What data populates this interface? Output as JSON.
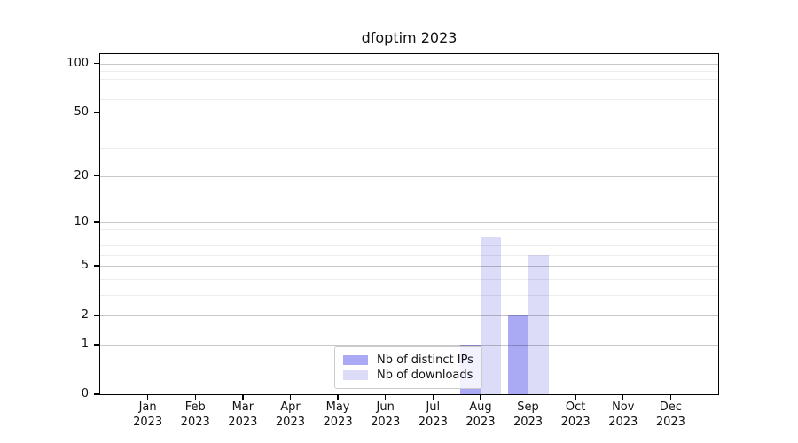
{
  "title": "dfoptim 2023",
  "chart_data": {
    "type": "bar",
    "title": "dfoptim 2023",
    "xlabel": "",
    "ylabel": "",
    "x_ticks": [
      {
        "month": "Jan",
        "year": "2023"
      },
      {
        "month": "Feb",
        "year": "2023"
      },
      {
        "month": "Mar",
        "year": "2023"
      },
      {
        "month": "Apr",
        "year": "2023"
      },
      {
        "month": "May",
        "year": "2023"
      },
      {
        "month": "Jun",
        "year": "2023"
      },
      {
        "month": "Jul",
        "year": "2023"
      },
      {
        "month": "Aug",
        "year": "2023"
      },
      {
        "month": "Sep",
        "year": "2023"
      },
      {
        "month": "Oct",
        "year": "2023"
      },
      {
        "month": "Nov",
        "year": "2023"
      },
      {
        "month": "Dec",
        "year": "2023"
      }
    ],
    "series": [
      {
        "name": "Nb of distinct IPs",
        "color": "#a9a9f4",
        "values": [
          0,
          0,
          0,
          0,
          0,
          0,
          0,
          1,
          2,
          0,
          0,
          0
        ]
      },
      {
        "name": "Nb of downloads",
        "color": "#dcdcf8",
        "values": [
          0,
          0,
          0,
          0,
          0,
          0,
          0,
          8,
          6,
          0,
          0,
          0
        ]
      }
    ],
    "y_axis": {
      "scale": "log1p",
      "major_ticks": [
        0,
        1,
        2,
        5,
        10,
        20,
        50,
        100
      ],
      "minor_ticks": [
        3,
        4,
        6,
        7,
        8,
        9,
        30,
        40,
        60,
        70,
        80,
        90
      ],
      "ylim": [
        0,
        114
      ]
    },
    "grid": true,
    "legend": {
      "position": "bottom-center",
      "entries": [
        "Nb of distinct IPs",
        "Nb of downloads"
      ]
    }
  }
}
